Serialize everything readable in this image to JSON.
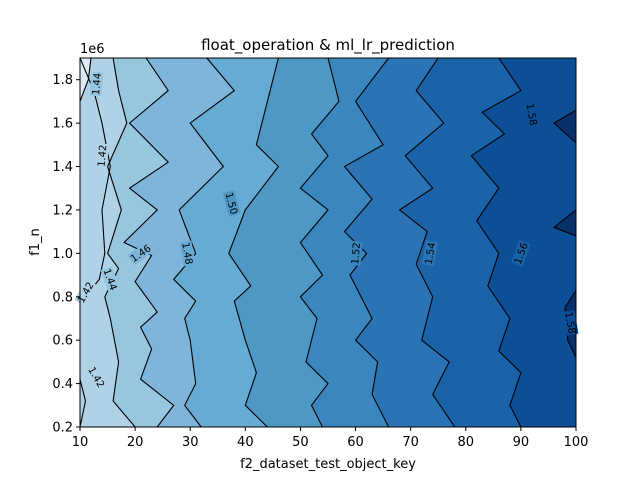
{
  "chart_data": {
    "type": "contourf",
    "title": "float_operation & ml_lr_prediction",
    "xlabel": "f2_dataset_test_object_key",
    "ylabel": "f1_n",
    "y_offset_label": "1e6",
    "xlim": [
      10,
      100
    ],
    "ylim": [
      200000,
      1900000
    ],
    "x_ticks": [
      10,
      20,
      30,
      40,
      50,
      60,
      70,
      80,
      90,
      100
    ],
    "y_ticks": [
      200000,
      400000,
      600000,
      800000,
      1000000,
      1200000,
      1400000,
      1600000,
      1800000
    ],
    "x_tick_labels": [
      "10",
      "20",
      "30",
      "40",
      "50",
      "60",
      "70",
      "80",
      "90",
      "100"
    ],
    "y_tick_labels": [
      "0.2",
      "0.4",
      "0.6",
      "0.8",
      "1.0",
      "1.2",
      "1.4",
      "1.6",
      "1.8"
    ],
    "colormap": "Blues",
    "levels": [
      1.4,
      1.41,
      1.42,
      1.44,
      1.46,
      1.48,
      1.5,
      1.52,
      1.54,
      1.56,
      1.58,
      1.6,
      1.61
    ],
    "band_colors": [
      "#deebf7",
      "#c8dcf0",
      "#b0d2e7",
      "#97c6df",
      "#7fb5da",
      "#66abd4",
      "#4e98c6",
      "#3a87c0",
      "#2a73b4",
      "#1a63a9",
      "#0c4f97",
      "#08306b"
    ],
    "contour_lines": [
      {
        "level": 1.41,
        "points": [
          [
            10,
            200000
          ],
          [
            11,
            320000
          ],
          [
            10,
            420000
          ]
        ]
      },
      {
        "level": 1.42,
        "points": [
          [
            10,
            770000
          ],
          [
            13.5,
            880000
          ],
          [
            14.5,
            1000000
          ],
          [
            14,
            1200000
          ],
          [
            15.5,
            1400000
          ],
          [
            14,
            1600000
          ],
          [
            12.5,
            1750000
          ],
          [
            10,
            1900000
          ]
        ]
      },
      {
        "level": 1.42,
        "points": [
          [
            10,
            1700000
          ],
          [
            11.5,
            1800000
          ],
          [
            12,
            1900000
          ]
        ]
      },
      {
        "level": 1.44,
        "points": [
          [
            20,
            200000
          ],
          [
            16,
            320000
          ],
          [
            17,
            500000
          ],
          [
            15.5,
            700000
          ],
          [
            14.5,
            800000
          ],
          [
            17,
            930000
          ],
          [
            15,
            1000000
          ],
          [
            17.5,
            1200000
          ],
          [
            15,
            1400000
          ],
          [
            18.5,
            1600000
          ],
          [
            17,
            1750000
          ],
          [
            16,
            1900000
          ]
        ]
      },
      {
        "level": 1.46,
        "points": [
          [
            24,
            200000
          ],
          [
            27,
            300000
          ],
          [
            21,
            420000
          ],
          [
            23,
            560000
          ],
          [
            21,
            660000
          ],
          [
            24,
            730000
          ],
          [
            20,
            870000
          ],
          [
            23,
            990000
          ],
          [
            18,
            1050000
          ],
          [
            24,
            1200000
          ],
          [
            19,
            1300000
          ],
          [
            26,
            1420000
          ],
          [
            19,
            1600000
          ],
          [
            26,
            1750000
          ],
          [
            22,
            1900000
          ]
        ]
      },
      {
        "level": 1.48,
        "points": [
          [
            32,
            200000
          ],
          [
            29,
            300000
          ],
          [
            31,
            400000
          ],
          [
            30,
            600000
          ],
          [
            29,
            700000
          ],
          [
            31,
            780000
          ],
          [
            27,
            880000
          ],
          [
            31,
            1000000
          ],
          [
            28,
            1200000
          ],
          [
            36,
            1400000
          ],
          [
            30,
            1600000
          ],
          [
            38,
            1750000
          ],
          [
            33,
            1900000
          ]
        ]
      },
      {
        "level": 1.5,
        "points": [
          [
            44,
            200000
          ],
          [
            40,
            300000
          ],
          [
            42,
            450000
          ],
          [
            40,
            600000
          ],
          [
            38,
            780000
          ],
          [
            41,
            850000
          ],
          [
            37,
            1000000
          ],
          [
            40,
            1200000
          ],
          [
            46,
            1400000
          ],
          [
            42,
            1500000
          ],
          [
            44,
            1700000
          ],
          [
            46,
            1900000
          ]
        ]
      },
      {
        "level": 1.52,
        "points": [
          [
            54,
            200000
          ],
          [
            52,
            300000
          ],
          [
            55,
            400000
          ],
          [
            51,
            500000
          ],
          [
            53,
            700000
          ],
          [
            50,
            800000
          ],
          [
            54,
            900000
          ],
          [
            50,
            1050000
          ],
          [
            55,
            1200000
          ],
          [
            50,
            1300000
          ],
          [
            55,
            1450000
          ],
          [
            52,
            1550000
          ],
          [
            57,
            1700000
          ],
          [
            55,
            1900000
          ]
        ]
      },
      {
        "level": 1.54,
        "points": [
          [
            66,
            200000
          ],
          [
            63,
            350000
          ],
          [
            64,
            500000
          ],
          [
            60,
            600000
          ],
          [
            63,
            700000
          ],
          [
            59,
            900000
          ],
          [
            62,
            1000000
          ],
          [
            58,
            1100000
          ],
          [
            63,
            1250000
          ],
          [
            58,
            1400000
          ],
          [
            65,
            1500000
          ],
          [
            60,
            1700000
          ],
          [
            66,
            1900000
          ]
        ]
      },
      {
        "level": 1.56,
        "points": [
          [
            78,
            200000
          ],
          [
            74,
            350000
          ],
          [
            77,
            500000
          ],
          [
            72,
            600000
          ],
          [
            74,
            800000
          ],
          [
            71,
            950000
          ],
          [
            73,
            1100000
          ],
          [
            68,
            1200000
          ],
          [
            74,
            1300000
          ],
          [
            69,
            1450000
          ],
          [
            76,
            1600000
          ],
          [
            71,
            1750000
          ],
          [
            75,
            1900000
          ]
        ]
      },
      {
        "level": 1.58,
        "points": [
          [
            90,
            200000
          ],
          [
            88,
            300000
          ],
          [
            90,
            450000
          ],
          [
            86,
            550000
          ],
          [
            88,
            700000
          ],
          [
            84,
            850000
          ],
          [
            86,
            1000000
          ],
          [
            82,
            1150000
          ],
          [
            86,
            1300000
          ],
          [
            81,
            1450000
          ],
          [
            87,
            1550000
          ],
          [
            83,
            1650000
          ],
          [
            90,
            1750000
          ],
          [
            86,
            1900000
          ]
        ]
      },
      {
        "level": 1.6,
        "points": [
          [
            100,
            520000
          ],
          [
            98.5,
            600000
          ],
          [
            98,
            750000
          ],
          [
            100,
            830000
          ]
        ]
      },
      {
        "level": 1.6,
        "points": [
          [
            100,
            1080000
          ],
          [
            96,
            1120000
          ],
          [
            100,
            1200000
          ]
        ]
      },
      {
        "level": 1.6,
        "points": [
          [
            100,
            1510000
          ],
          [
            96,
            1600000
          ],
          [
            100,
            1660000
          ]
        ]
      }
    ],
    "contour_labels": [
      {
        "text": "1.44",
        "x": 13,
        "y": 1780000,
        "rot": -85
      },
      {
        "text": "1.42",
        "x": 14,
        "y": 1450000,
        "rot": -85
      },
      {
        "text": "1.46",
        "x": 21,
        "y": 1000000,
        "rot": -35
      },
      {
        "text": "1.44",
        "x": 15.5,
        "y": 880000,
        "rot": 70
      },
      {
        "text": "1.42",
        "x": 11,
        "y": 820000,
        "rot": -60
      },
      {
        "text": "1.42",
        "x": 13,
        "y": 430000,
        "rot": 60
      },
      {
        "text": "1.48",
        "x": 29.5,
        "y": 1000000,
        "rot": 80
      },
      {
        "text": "1.50",
        "x": 37.5,
        "y": 1230000,
        "rot": 75
      },
      {
        "text": "1.52",
        "x": 60,
        "y": 1000000,
        "rot": -85
      },
      {
        "text": "1.54",
        "x": 73.5,
        "y": 1000000,
        "rot": -80
      },
      {
        "text": "1.56",
        "x": 90,
        "y": 1000000,
        "rot": -70
      },
      {
        "text": "1.58",
        "x": 92,
        "y": 1640000,
        "rot": 80
      },
      {
        "text": "1.58",
        "x": 99,
        "y": 680000,
        "rot": 80
      }
    ]
  }
}
